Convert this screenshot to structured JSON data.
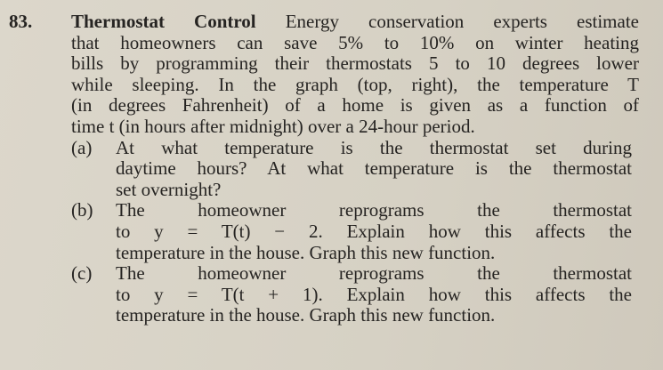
{
  "problem": {
    "number": "83.",
    "title": "Thermostat Control",
    "intro_lines": [
      "Energy conservation experts estimate",
      "that homeowners can save 5% to 10% on winter heating",
      "bills by programming their thermostats 5 to 10 degrees lower",
      "while sleeping. In the graph (top, right), the temperature T",
      "(in degrees Fahrenheit) of a home is given as a function of",
      "time t (in hours after midnight) over a 24-hour period."
    ],
    "parts": [
      {
        "label": "(a)",
        "lines": [
          "At what temperature is the thermostat set during",
          "daytime hours? At what temperature is the thermostat",
          "set overnight?"
        ]
      },
      {
        "label": "(b)",
        "lines": [
          "The homeowner reprograms the thermostat",
          "to y = T(t) − 2. Explain how this affects the",
          "temperature in the house. Graph this new function."
        ]
      },
      {
        "label": "(c)",
        "lines": [
          "The homeowner reprograms the thermostat",
          "to y = T(t + 1). Explain how this affects the",
          "temperature in the house. Graph this new function."
        ]
      }
    ]
  }
}
